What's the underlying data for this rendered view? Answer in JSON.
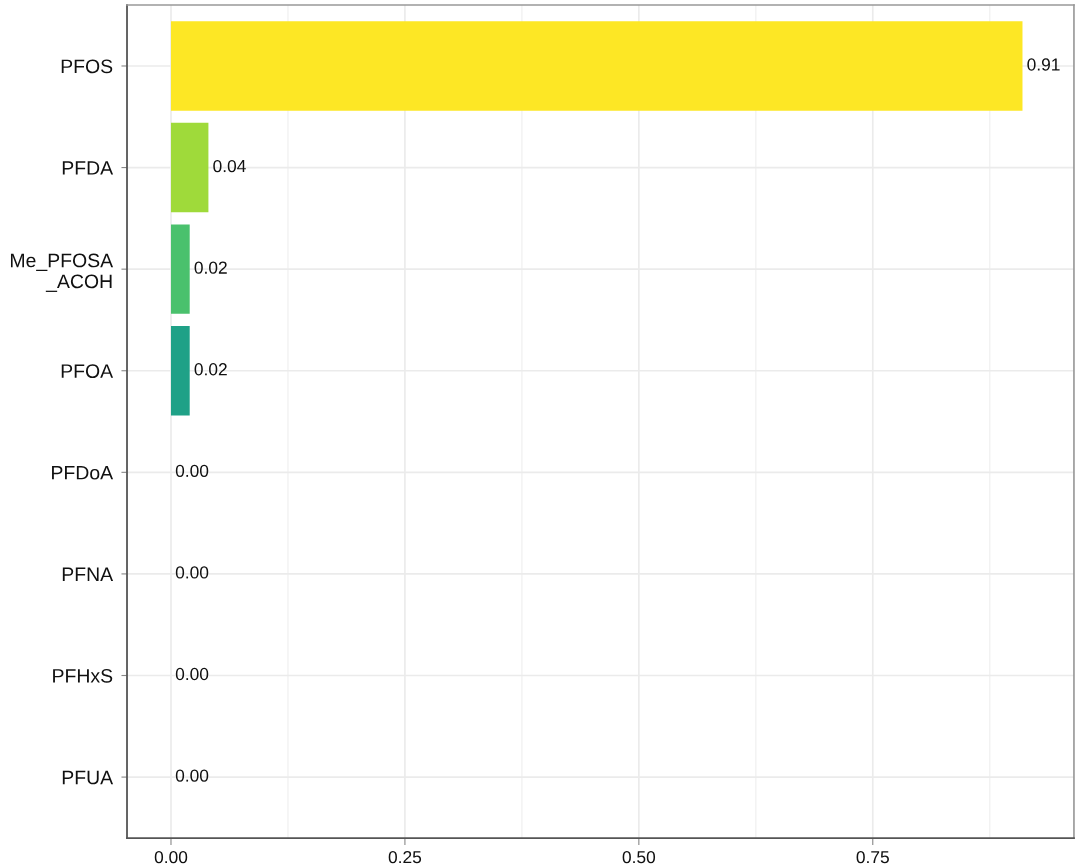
{
  "chart_data": {
    "type": "bar",
    "orientation": "horizontal",
    "categories": [
      "PFOS",
      "PFDA",
      "Me_PFOSA\n_ACOH",
      "PFOA",
      "PFDoA",
      "PFNA",
      "PFHxS",
      "PFUA"
    ],
    "values": [
      0.91,
      0.04,
      0.02,
      0.02,
      0,
      0,
      0,
      0
    ],
    "value_labels": [
      "0.91",
      "0.04",
      "0.02",
      "0.02",
      "0.00",
      "0.00",
      "0.00",
      "0.00"
    ],
    "colors": [
      "#fde725",
      "#9fda3a",
      "#4ac16d",
      "#1fa187",
      "#277f8e",
      "#365c8d",
      "#46337e",
      "#440154"
    ],
    "xlim": [
      -0.047,
      0.965
    ],
    "xticks": [
      {
        "value": 0,
        "label": "0.00"
      },
      {
        "value": 0.25,
        "label": "0.25"
      },
      {
        "value": 0.5,
        "label": "0.50"
      },
      {
        "value": 0.75,
        "label": "0.75"
      }
    ],
    "grid": true
  }
}
